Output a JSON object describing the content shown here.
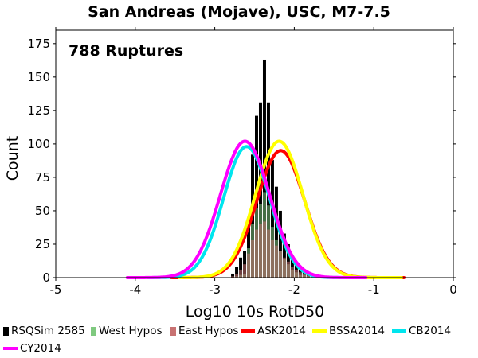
{
  "chart_data": {
    "type": "bar",
    "title": "San Andreas (Mojave), USC, M7-7.5",
    "annotation": "788 Ruptures",
    "xlabel": "Log10 10s RotD50",
    "ylabel": "Count",
    "xlim": [
      -5,
      0
    ],
    "ylim": [
      0,
      185
    ],
    "x_ticks": [
      "-5",
      "-4",
      "-3",
      "-2",
      "-1",
      "0"
    ],
    "y_ticks": [
      "0",
      "25",
      "50",
      "75",
      "100",
      "125",
      "150",
      "175"
    ],
    "bin_width": 0.05,
    "histograms": [
      {
        "name": "RSQSim 2585",
        "color": "#000000",
        "bin_centers": [
          -2.775,
          -2.725,
          -2.675,
          -2.625,
          -2.575,
          -2.525,
          -2.475,
          -2.425,
          -2.375,
          -2.325,
          -2.275,
          -2.225,
          -2.175,
          -2.125,
          -2.075,
          -2.025,
          -1.975,
          -1.925,
          -1.875,
          -1.825,
          -1.775,
          -1.725,
          -1.675,
          -1.625
        ],
        "values": [
          3,
          8,
          15,
          20,
          44,
          92,
          121,
          131,
          163,
          131,
          88,
          68,
          50,
          33,
          25,
          14,
          10,
          6,
          5,
          3,
          2,
          1,
          1,
          1
        ]
      },
      {
        "name": "West Hypos",
        "color": "#7fc97f",
        "bin_centers": [
          -2.775,
          -2.725,
          -2.675,
          -2.625,
          -2.575,
          -2.525,
          -2.475,
          -2.425,
          -2.375,
          -2.325,
          -2.275,
          -2.225,
          -2.175,
          -2.125,
          -2.075,
          -2.025,
          -1.975,
          -1.925,
          -1.875,
          -1.825,
          -1.775,
          -1.725,
          -1.675,
          -1.625
        ],
        "values": [
          0,
          1,
          2,
          3,
          22,
          40,
          52,
          55,
          64,
          54,
          38,
          28,
          20,
          14,
          10,
          6,
          4,
          2,
          2,
          1,
          1,
          0,
          0,
          0
        ]
      },
      {
        "name": "East Hypos",
        "color": "#c87272",
        "bin_centers": [
          -2.775,
          -2.725,
          -2.675,
          -2.625,
          -2.575,
          -2.525,
          -2.475,
          -2.425,
          -2.375,
          -2.325,
          -2.275,
          -2.225,
          -2.175,
          -2.125,
          -2.075,
          -2.025,
          -1.975,
          -1.925,
          -1.875,
          -1.825,
          -1.775,
          -1.725,
          -1.675,
          -1.625
        ],
        "values": [
          1,
          3,
          6,
          10,
          18,
          28,
          36,
          40,
          42,
          36,
          28,
          24,
          20,
          15,
          12,
          8,
          6,
          4,
          3,
          2,
          1,
          1,
          1,
          1
        ]
      }
    ],
    "series": [
      {
        "name": "ASK2014",
        "color": "#ff0000",
        "mu": -2.17,
        "sigma": 0.3,
        "peak": 95,
        "x_range": [
          -3.55,
          -0.62
        ]
      },
      {
        "name": "BSSA2014",
        "color": "#ffff00",
        "mu": -2.19,
        "sigma": 0.3,
        "peak": 102,
        "x_range": [
          -3.45,
          -0.65
        ]
      },
      {
        "name": "CB2014",
        "color": "#00e5ee",
        "mu": -2.6,
        "sigma": 0.29,
        "peak": 98,
        "x_range": [
          -3.85,
          -1.15
        ]
      },
      {
        "name": "CY2014",
        "color": "#ff00ff",
        "mu": -2.62,
        "sigma": 0.31,
        "peak": 102,
        "x_range": [
          -4.1,
          -1.1
        ]
      }
    ],
    "legend": [
      "RSQSim 2585",
      "West Hypos",
      "East Hypos",
      "ASK2014",
      "BSSA2014",
      "CB2014",
      "CY2014"
    ],
    "legend_position": "bottom",
    "grid": false
  }
}
